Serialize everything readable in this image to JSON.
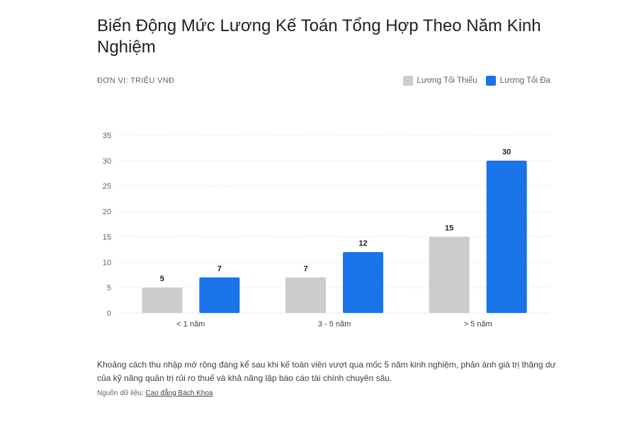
{
  "title": "Biến Động Mức Lương Kế Toán Tổng Hợp Theo Năm Kinh Nghiệm",
  "unit_label": "ĐƠN VỊ: TRIỆU VNĐ",
  "description": "Khoảng cách thu nhập mở rộng đáng kể sau khi kế toán viên vượt qua mốc 5 năm kinh nghiệm, phản ánh giá trị thặng dư của kỹ năng quản trị rủi ro thuế và khả năng lập báo cáo tài chính chuyên sâu.",
  "source": {
    "label": "Nguồn dữ liệu:",
    "link_text": "Cao đẳng Bách Khoa"
  },
  "chart_data": {
    "type": "bar",
    "title": "Biến Động Mức Lương Kế Toán Tổng Hợp Theo Năm Kinh Nghiệm",
    "ylabel": "ĐƠN VỊ: TRIỆU VNĐ",
    "categories": [
      "< 1 năm",
      "3 - 5 năm",
      "> 5 năm"
    ],
    "series": [
      {
        "name": "Lương Tối Thiểu",
        "values": [
          5,
          7,
          15
        ],
        "color": "#cccccc"
      },
      {
        "name": "Lương Tối Đa",
        "values": [
          7,
          12,
          30
        ],
        "color": "#1a73e8"
      }
    ],
    "ylim": [
      0,
      35
    ],
    "yticks": [
      0,
      5,
      10,
      15,
      20,
      25,
      30,
      35
    ],
    "grid": true,
    "legend": "top-right",
    "data_labels": true
  }
}
